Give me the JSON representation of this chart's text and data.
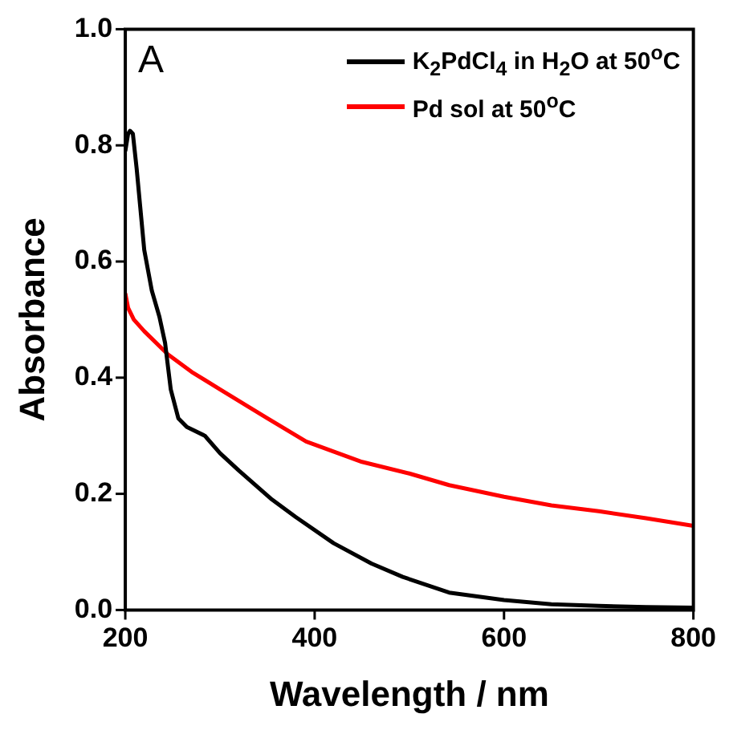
{
  "chart_data": {
    "type": "line",
    "xlabel": "Wavelength / nm",
    "ylabel": "Absorbance",
    "annotations": [
      "A"
    ],
    "xlim": [
      200,
      800
    ],
    "xticks": [
      200,
      400,
      600,
      800
    ],
    "ylim": [
      0,
      1
    ],
    "yticks": [
      {
        "value": 0,
        "label": "0.0"
      },
      {
        "value": 0.2,
        "label": "0.2"
      },
      {
        "value": 0.4,
        "label": "0.4"
      },
      {
        "value": 0.6,
        "label": "0.6"
      },
      {
        "value": 0.8,
        "label": "0.8"
      },
      {
        "value": 1,
        "label": "1.0"
      }
    ],
    "grid": false,
    "legend": "top right",
    "marker": "none",
    "line_style": "solid",
    "series": [
      {
        "name": "K$_{2}$PdCl$_{4}$ in H$_{2}$O at 50$^{o}$C",
        "color": "#000000",
        "x": [
          200,
          203,
          205,
          208,
          212,
          220,
          228,
          236,
          242,
          248,
          256,
          265,
          284,
          300,
          320,
          355,
          380,
          420,
          460,
          493,
          542,
          600,
          650,
          700,
          750,
          800
        ],
        "values": [
          0.79,
          0.82,
          0.825,
          0.82,
          0.76,
          0.62,
          0.55,
          0.505,
          0.46,
          0.38,
          0.33,
          0.315,
          0.3,
          0.27,
          0.24,
          0.19,
          0.16,
          0.115,
          0.08,
          0.057,
          0.03,
          0.017,
          0.01,
          0.007,
          0.005,
          0.004
        ]
      },
      {
        "name": "Pd sol at 50$^{o}$C",
        "color": "#ff0000",
        "x": [
          200,
          203,
          209,
          220,
          245,
          270,
          300,
          350,
          391,
          450,
          500,
          542,
          600,
          650,
          700,
          750,
          796,
          800
        ],
        "values": [
          0.545,
          0.52,
          0.5,
          0.48,
          0.44,
          0.41,
          0.38,
          0.33,
          0.29,
          0.255,
          0.235,
          0.215,
          0.195,
          0.18,
          0.17,
          0.158,
          0.146,
          0.145
        ]
      }
    ]
  }
}
